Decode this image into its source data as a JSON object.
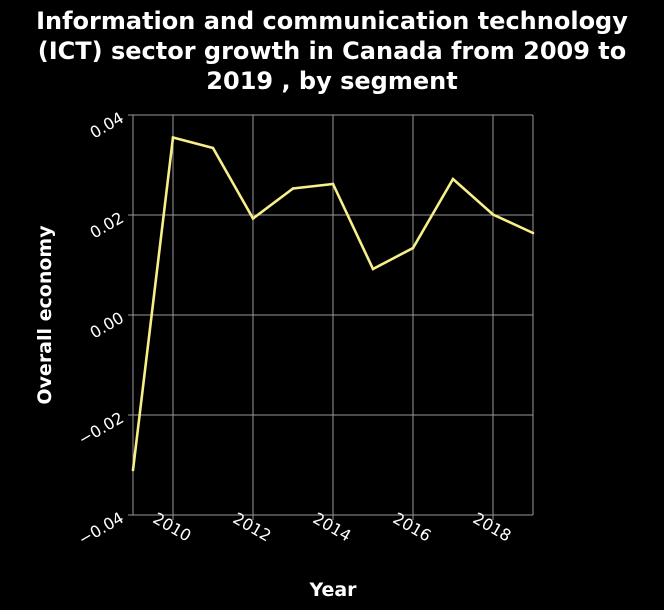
{
  "chart_data": {
    "type": "line",
    "title_lines": [
      "Information and communication technology",
      "(ICT) sector growth in Canada from 2009 to",
      "2019 , by segment"
    ],
    "xlabel": "Year",
    "ylabel": "Overall economy",
    "xlim": [
      2009,
      2019
    ],
    "ylim": [
      -0.04,
      0.04
    ],
    "x_ticks": [
      2010,
      2012,
      2014,
      2016,
      2018
    ],
    "y_ticks": [
      -0.04,
      -0.02,
      0.0,
      0.02,
      0.04
    ],
    "y_tick_labels": [
      "−0.04",
      "−0.02",
      "0.00",
      "0.02",
      "0.04"
    ],
    "x": [
      2009,
      2010,
      2011,
      2012,
      2013,
      2014,
      2015,
      2016,
      2017,
      2018,
      2019
    ],
    "values": [
      -0.031,
      0.0355,
      0.0334,
      0.0193,
      0.0253,
      0.0262,
      0.0092,
      0.0134,
      0.0272,
      0.0201,
      0.0164
    ],
    "grid": true,
    "colors": {
      "background": "#000000",
      "line": "#f7ef8a",
      "grid": "#999999",
      "text": "#ffffff"
    }
  }
}
